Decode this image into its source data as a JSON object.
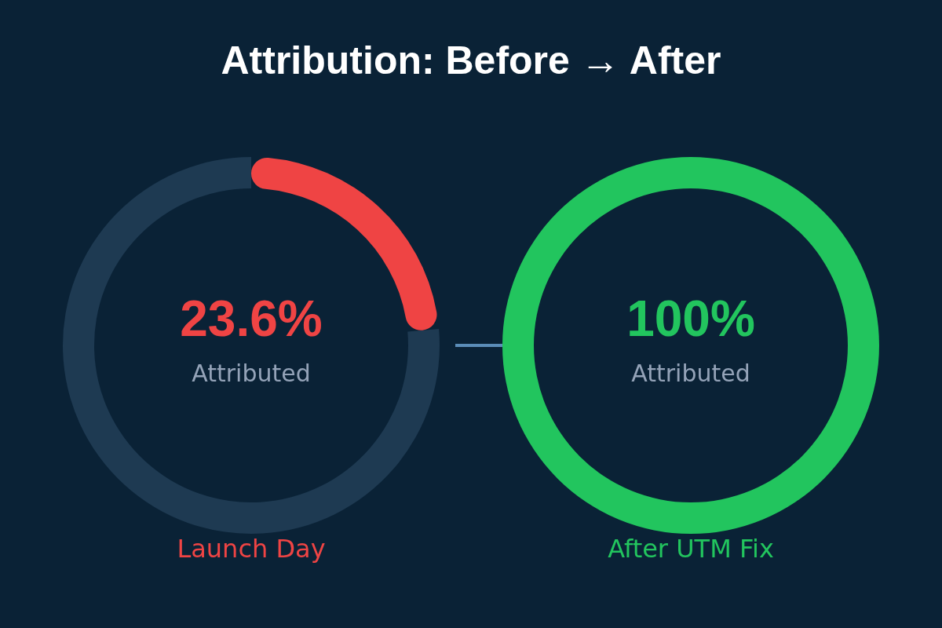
{
  "chart_data": [
    {
      "type": "donut",
      "title": "Attribution: Before → After",
      "xlabel": "Launch Day",
      "categories": [
        "Attributed",
        null
      ],
      "values": [
        23.6,
        76.4
      ],
      "colors": [
        "#ef4444",
        "#1e3a52"
      ],
      "value_labels": [
        "23.6%",
        null
      ]
    },
    {
      "type": "donut",
      "xlabel": "After UTM Fix",
      "categories": [
        "Attributed"
      ],
      "values": [
        100
      ],
      "colors": [
        "#22c55e"
      ],
      "value_labels": [
        "100%"
      ]
    }
  ]
}
